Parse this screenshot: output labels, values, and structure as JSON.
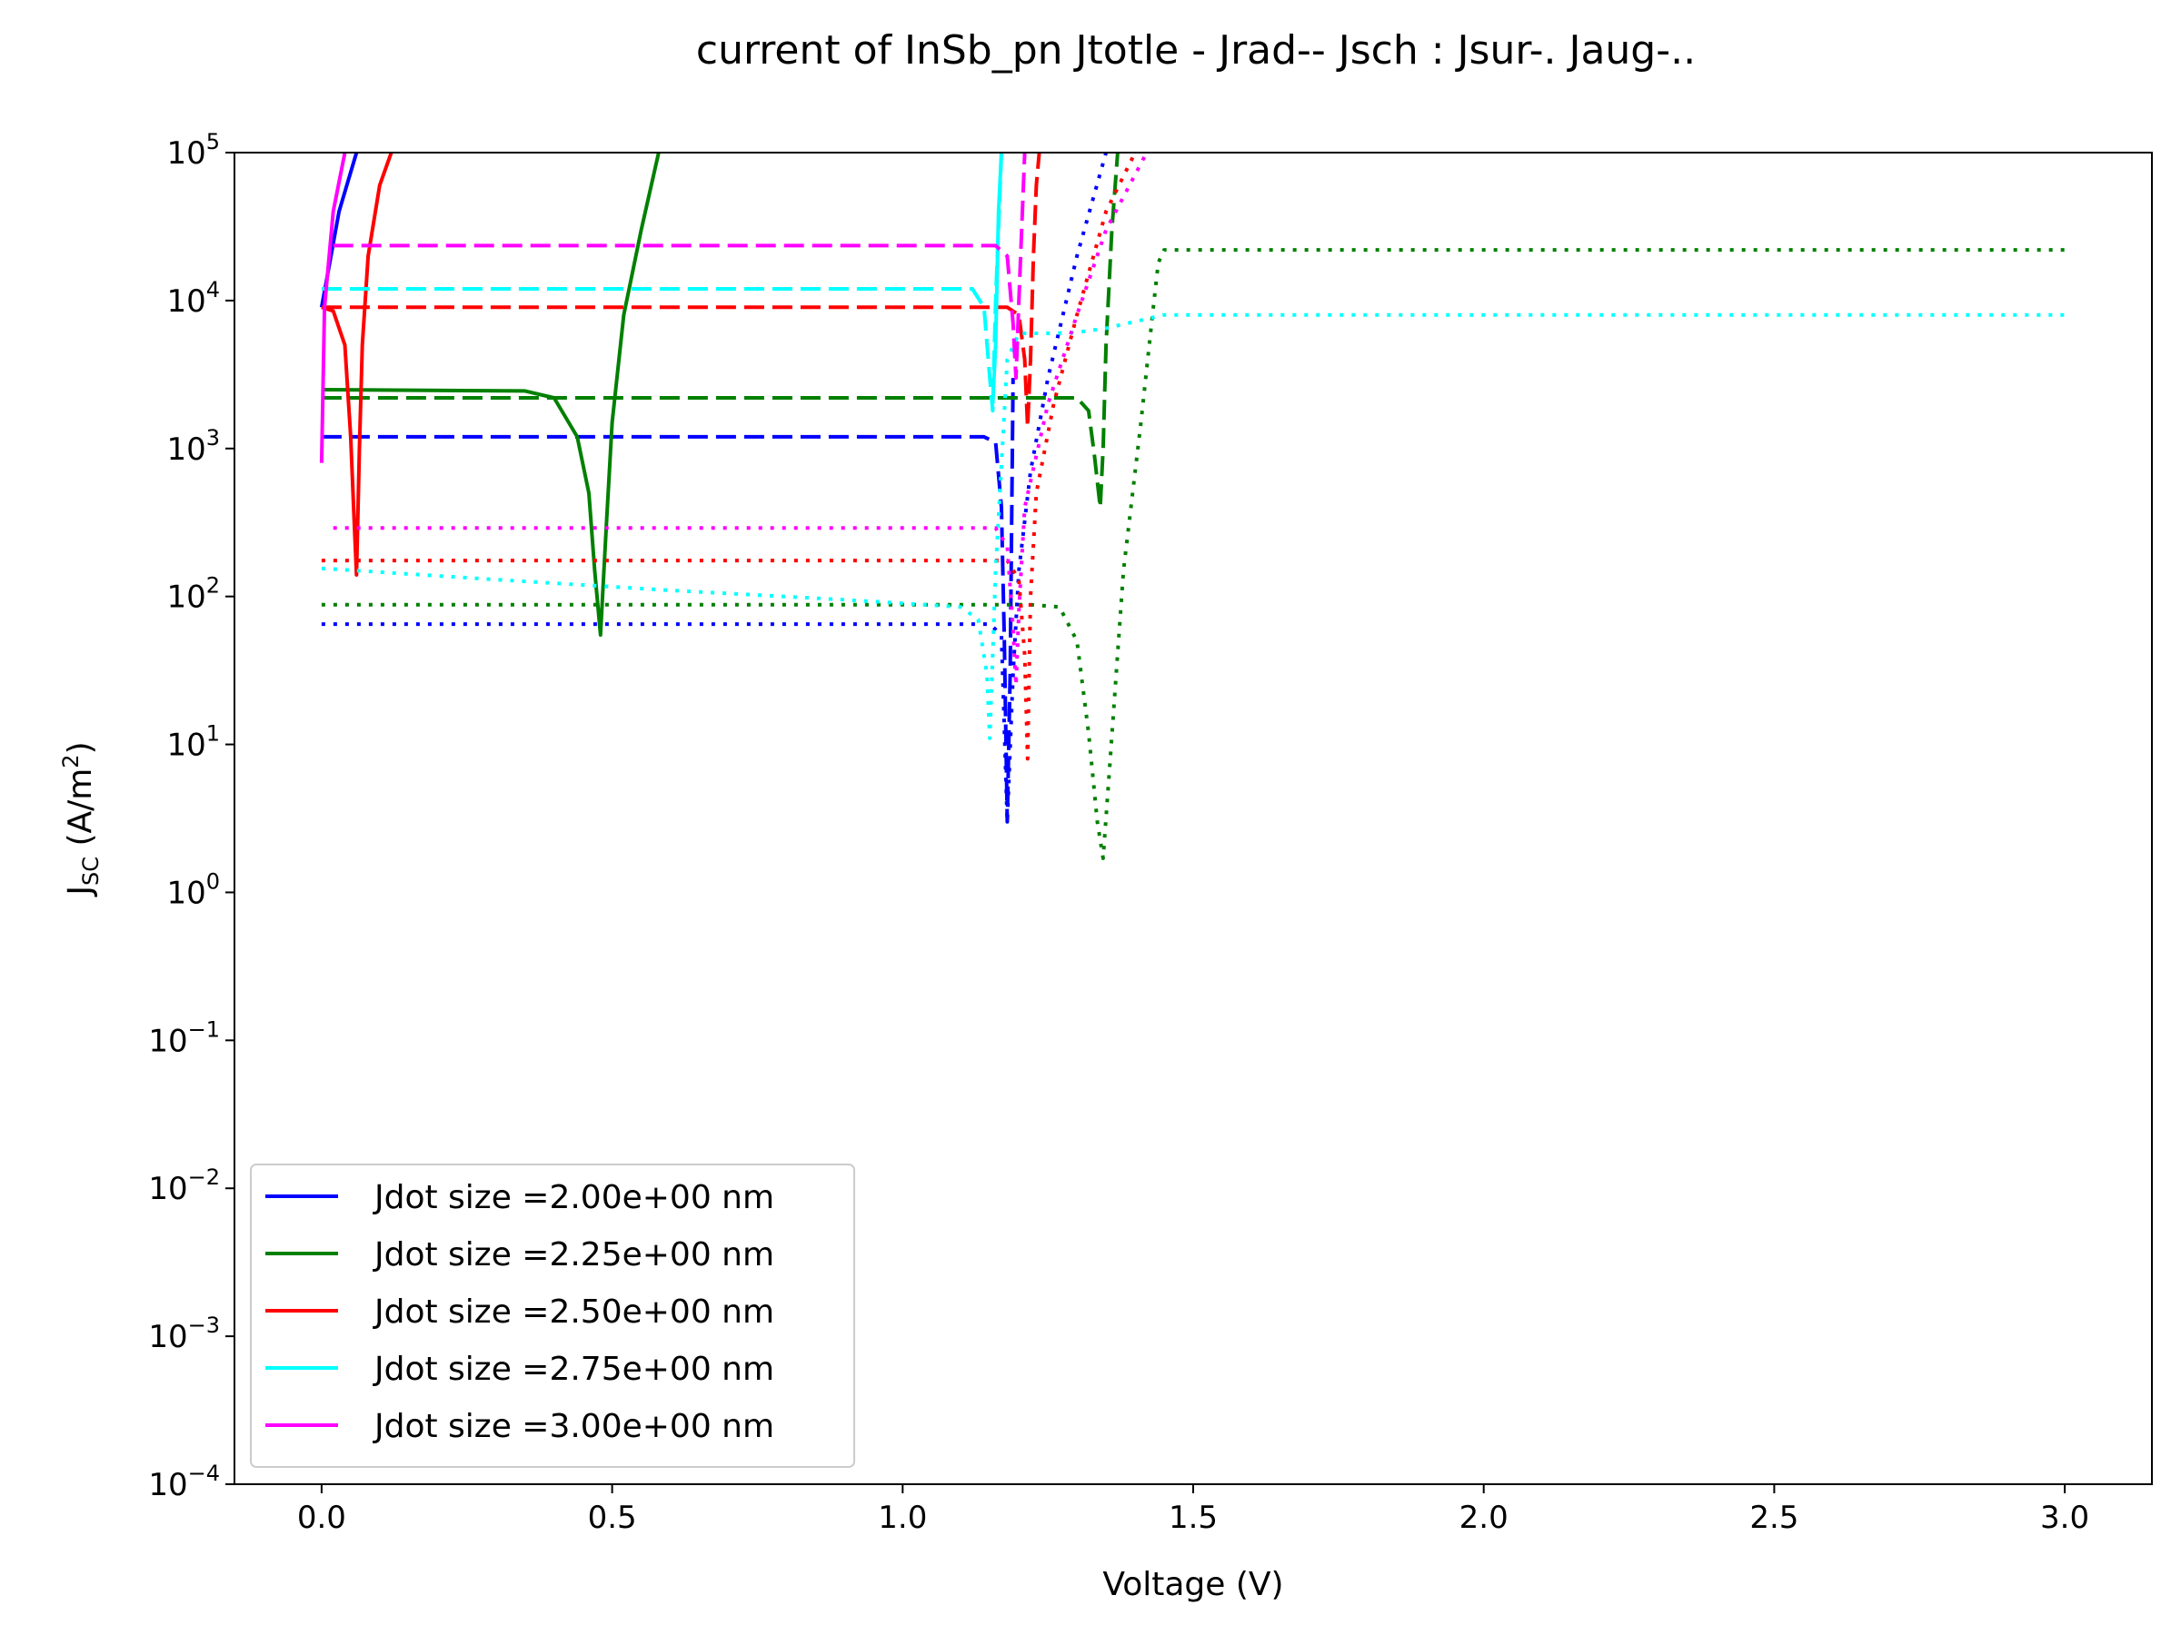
{
  "chart_data": {
    "type": "line",
    "title": "current of InSb_pn Jtotle - Jrad-- Jsch : Jsur-. Jaug-..",
    "xlabel": "Voltage (V)",
    "ylabel_main": "J",
    "ylabel_sub": "SC",
    "ylabel_unit": " (A/m",
    "ylabel_unit_sup": "2",
    "ylabel_unit_close": ")",
    "yscale": "log",
    "xlim": [
      -0.15,
      3.15
    ],
    "ylim": [
      0.0001,
      100000
    ],
    "x_ticks": [
      {
        "value": 0.0,
        "label": "0.0"
      },
      {
        "value": 0.5,
        "label": "0.5"
      },
      {
        "value": 1.0,
        "label": "1.0"
      },
      {
        "value": 1.5,
        "label": "1.5"
      },
      {
        "value": 2.0,
        "label": "2.0"
      },
      {
        "value": 2.5,
        "label": "2.5"
      },
      {
        "value": 3.0,
        "label": "3.0"
      }
    ],
    "y_ticks": [
      {
        "exp": -4,
        "label": "10",
        "sup": "−4"
      },
      {
        "exp": -3,
        "label": "10",
        "sup": "−3"
      },
      {
        "exp": -2,
        "label": "10",
        "sup": "−2"
      },
      {
        "exp": -1,
        "label": "10",
        "sup": "−1"
      },
      {
        "exp": 0,
        "label": "10",
        "sup": "0"
      },
      {
        "exp": 1,
        "label": "10",
        "sup": "1"
      },
      {
        "exp": 2,
        "label": "10",
        "sup": "2"
      },
      {
        "exp": 3,
        "label": "10",
        "sup": "3"
      },
      {
        "exp": 4,
        "label": "10",
        "sup": "4"
      },
      {
        "exp": 5,
        "label": "10",
        "sup": "5"
      }
    ],
    "grid": false,
    "legend_position": "lower-left",
    "series": [
      {
        "name": "Jdot size =2.00e+00 nm",
        "color": "#0000ff",
        "legend": true,
        "style": "solid",
        "x": [
          0.0,
          0.03,
          0.06
        ],
        "y": [
          9000,
          40000,
          100000
        ]
      },
      {
        "style": "dashed",
        "color": "#0000ff",
        "x": [
          0.0,
          1.14,
          1.16,
          1.17,
          1.175,
          1.18,
          1.185,
          1.19
        ],
        "y": [
          1200,
          1200,
          1100,
          400,
          50,
          3,
          30,
          3000
        ]
      },
      {
        "style": "dotted",
        "color": "#0000ff",
        "x": [
          0.0,
          1.15,
          1.17,
          1.18,
          1.19,
          1.2,
          1.22,
          1.25,
          1.3,
          1.35
        ],
        "y": [
          65,
          65,
          55,
          3,
          30,
          150,
          700,
          3000,
          20000,
          100000
        ]
      },
      {
        "name": "Jdot size =2.25e+00 nm",
        "color": "#008000",
        "legend": true,
        "style": "solid",
        "x": [
          0.0,
          0.35,
          0.4,
          0.44,
          0.46,
          0.47,
          0.48,
          0.49,
          0.5,
          0.52,
          0.55,
          0.58
        ],
        "y": [
          2500,
          2450,
          2200,
          1200,
          500,
          150,
          55,
          300,
          1500,
          8000,
          30000,
          100000
        ]
      },
      {
        "style": "dashed",
        "color": "#008000",
        "x": [
          0.0,
          1.3,
          1.32,
          1.33,
          1.34,
          1.345,
          1.35,
          1.36,
          1.37
        ],
        "y": [
          2200,
          2200,
          1800,
          900,
          400,
          1000,
          5000,
          30000,
          100000
        ]
      },
      {
        "style": "dotted",
        "color": "#008000",
        "x": [
          0.0,
          1.22,
          1.27,
          1.3,
          1.32,
          1.335,
          1.345,
          1.355,
          1.38,
          1.41,
          1.43,
          1.44,
          1.45,
          3.0
        ],
        "y": [
          88,
          88,
          85,
          50,
          12,
          3,
          1.7,
          6,
          150,
          1500,
          8000,
          18000,
          22000,
          22000
        ]
      },
      {
        "name": "Jdot size =2.50e+00 nm",
        "color": "#ff0000",
        "legend": true,
        "style": "solid",
        "x": [
          0.0,
          0.02,
          0.04,
          0.05,
          0.055,
          0.06,
          0.065,
          0.07,
          0.08,
          0.1,
          0.12
        ],
        "y": [
          9000,
          8500,
          5000,
          1200,
          400,
          140,
          1000,
          5000,
          20000,
          60000,
          100000
        ]
      },
      {
        "style": "dashed",
        "color": "#ff0000",
        "x": [
          0.0,
          1.18,
          1.2,
          1.21,
          1.215,
          1.22,
          1.225,
          1.23,
          1.235
        ],
        "y": [
          9000,
          9000,
          8000,
          4000,
          1400,
          4000,
          20000,
          60000,
          100000
        ]
      },
      {
        "style": "dotted",
        "color": "#ff0000",
        "x": [
          0.0,
          1.18,
          1.2,
          1.21,
          1.215,
          1.22,
          1.23,
          1.26,
          1.3,
          1.35,
          1.4
        ],
        "y": [
          175,
          175,
          130,
          40,
          8,
          100,
          500,
          2000,
          8000,
          40000,
          100000
        ]
      },
      {
        "name": "Jdot size =2.75e+00 nm",
        "color": "#00ffff",
        "legend": true,
        "style": "solid",
        "x": [
          1.155,
          1.16,
          1.165,
          1.17
        ],
        "y": [
          2000,
          5000,
          40000,
          100000
        ]
      },
      {
        "style": "dashed",
        "color": "#00ffff",
        "x": [
          0.0,
          1.12,
          1.14,
          1.15,
          1.155,
          1.16,
          1.17
        ],
        "y": [
          12000,
          12000,
          9000,
          3000,
          1800,
          10000,
          100000
        ]
      },
      {
        "style": "dotted",
        "color": "#00ffff",
        "x": [
          0.0,
          0.3,
          0.6,
          0.9,
          1.1,
          1.13,
          1.145,
          1.15,
          1.16,
          1.18,
          1.2,
          1.26,
          1.3,
          1.35,
          1.45,
          3.0
        ],
        "y": [
          155,
          130,
          110,
          95,
          85,
          70,
          30,
          11,
          150,
          4000,
          6000,
          6000,
          6100,
          6500,
          8000,
          8000
        ]
      },
      {
        "name": "Jdot size =3.00e+00 nm",
        "color": "#ff00ff",
        "legend": true,
        "style": "solid",
        "x": [
          0.0,
          0.005,
          0.02,
          0.04
        ],
        "y": [
          800,
          9000,
          40000,
          100000
        ]
      },
      {
        "style": "dashed",
        "color": "#ff00ff",
        "x": [
          0.02,
          1.16,
          1.18,
          1.19,
          1.195,
          1.2,
          1.21
        ],
        "y": [
          23500,
          23500,
          20000,
          7000,
          3000,
          10000,
          100000
        ]
      },
      {
        "style": "dotted",
        "color": "#ff00ff",
        "x": [
          0.02,
          1.16,
          1.18,
          1.19,
          1.195,
          1.2,
          1.21,
          1.25,
          1.3,
          1.35,
          1.42
        ],
        "y": [
          290,
          290,
          220,
          60,
          25,
          80,
          400,
          2000,
          8000,
          30000,
          100000
        ]
      }
    ]
  }
}
